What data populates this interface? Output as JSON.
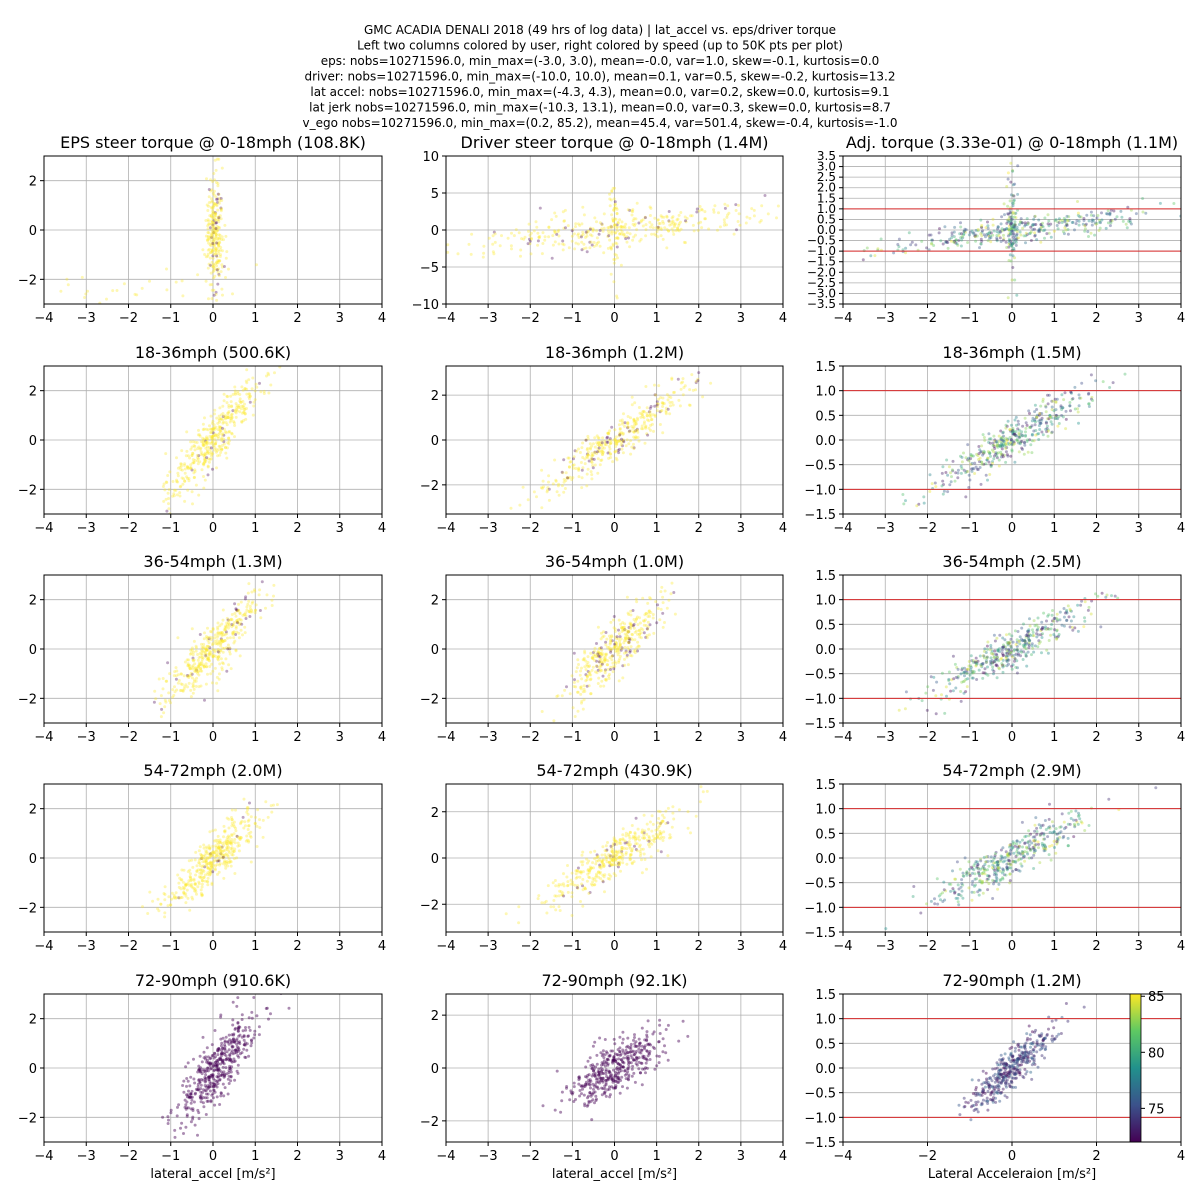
{
  "figure": {
    "suptitle_lines": [
      "GMC ACADIA DENALI 2018 (49 hrs of log data) | lat_accel vs. eps/driver torque",
      "Left two columns colored by user, right colored by speed (up to 50K pts per plot)",
      "eps: nobs=10271596.0, min_max=(-3.0, 3.0), mean=-0.0, var=1.0, skew=-0.1, kurtosis=0.0",
      "driver: nobs=10271596.0, min_max=(-10.0, 10.0), mean=0.1, var=0.5, skew=-0.2, kurtosis=13.2",
      "lat accel: nobs=10271596.0, min_max=(-4.3, 4.3), mean=0.0, var=0.2, skew=0.0, kurtosis=9.1",
      "lat jerk nobs=10271596.0, min_max=(-10.3, 13.1), mean=0.0, var=0.3, skew=0.0, kurtosis=8.7",
      "v_ego nobs=10271596.0, min_max=(0.2, 85.2), mean=45.4, var=501.4, skew=-0.4, kurtosis=-1.0"
    ],
    "colors": {
      "viridis": [
        "#440154",
        "#3b528b",
        "#21918c",
        "#5ec962",
        "#fde725"
      ],
      "yellow": "#fde725",
      "purple": "#440154",
      "refline": "#d62728",
      "grid": "#b0b0b0"
    },
    "colorbar": {
      "ticks": [
        75,
        80,
        85
      ],
      "range": [
        72,
        85.2
      ]
    }
  },
  "chart_data": [
    {
      "type": "scatter",
      "title": "EPS steer torque @ 0-18mph (108.8K)",
      "xlim": [
        -4,
        4
      ],
      "ylim": [
        -3,
        3
      ],
      "xticks": [
        -4,
        -3,
        -2,
        -1,
        0,
        1,
        2,
        3,
        4
      ],
      "yticks": [
        -2,
        0,
        2
      ],
      "xlabel": "",
      "grid": true,
      "color_mode": "user",
      "clusters": [
        {
          "cx": 0.05,
          "cy": 0,
          "sx": 0.1,
          "sy": 1.2,
          "slope": 0,
          "n": 260,
          "purple": 0.12
        },
        {
          "cx": -1.5,
          "cy": -2.3,
          "sx": 1.3,
          "sy": 0.4,
          "slope": 0.2,
          "n": 30,
          "purple": 0
        }
      ]
    },
    {
      "type": "scatter",
      "title": "Driver steer torque @ 0-18mph (1.4M)",
      "xlim": [
        -4,
        4
      ],
      "ylim": [
        -10,
        10
      ],
      "xticks": [
        -4,
        -3,
        -2,
        -1,
        0,
        1,
        2,
        3,
        4
      ],
      "yticks": [
        -10,
        -5,
        0,
        5,
        10
      ],
      "xlabel": "",
      "grid": true,
      "color_mode": "user",
      "clusters": [
        {
          "cx": 0,
          "cy": 0,
          "sx": 1.8,
          "sy": 1.2,
          "slope": 0.7,
          "n": 360,
          "purple": 0.1
        },
        {
          "cx": 0,
          "cy": 0,
          "sx": 0.07,
          "sy": 3.5,
          "slope": 0,
          "n": 60,
          "purple": 0.05
        }
      ]
    },
    {
      "type": "scatter",
      "title": "Adj. torque (3.33e-01) @ 0-18mph (1.1M)",
      "xlim": [
        -4,
        4
      ],
      "ylim": [
        -3.5,
        3.5
      ],
      "xticks": [
        -4,
        -3,
        -2,
        -1,
        0,
        1,
        2,
        3,
        4
      ],
      "yticks": [
        -3.5,
        -3,
        -2.5,
        -2,
        -1.5,
        -1,
        -0.5,
        0,
        0.5,
        1,
        1.5,
        2,
        2.5,
        3,
        3.5
      ],
      "xlabel": "",
      "grid": true,
      "color_mode": "speed",
      "reflines": [
        -1,
        1
      ],
      "clusters": [
        {
          "cx": 0.2,
          "cy": 0.05,
          "sx": 1.6,
          "sy": 0.3,
          "slope": 0.25,
          "n": 360,
          "purple": 0
        },
        {
          "cx": 0,
          "cy": 0,
          "sx": 0.08,
          "sy": 1.2,
          "slope": 0,
          "n": 100,
          "purple": 0
        }
      ]
    },
    {
      "type": "scatter",
      "title": "18-36mph (500.6K)",
      "xlim": [
        -4,
        4
      ],
      "ylim": [
        -3,
        3
      ],
      "xticks": [
        -4,
        -3,
        -2,
        -1,
        0,
        1,
        2,
        3,
        4
      ],
      "yticks": [
        -2,
        0,
        2
      ],
      "xlabel": "",
      "grid": true,
      "color_mode": "user",
      "clusters": [
        {
          "cx": 0,
          "cy": 0,
          "sx": 0.55,
          "sy": 0.55,
          "slope": 1.9,
          "n": 420,
          "purple": 0.04
        }
      ]
    },
    {
      "type": "scatter",
      "title": "18-36mph (1.2M)",
      "xlim": [
        -4,
        4
      ],
      "ylim": [
        -3.3,
        3.3
      ],
      "xticks": [
        -4,
        -3,
        -2,
        -1,
        0,
        1,
        2,
        3,
        4
      ],
      "yticks": [
        -2,
        0,
        2
      ],
      "xlabel": "",
      "grid": true,
      "color_mode": "user",
      "clusters": [
        {
          "cx": 0,
          "cy": 0,
          "sx": 1.0,
          "sy": 0.45,
          "slope": 1.3,
          "n": 400,
          "purple": 0.14
        }
      ]
    },
    {
      "type": "scatter",
      "title": "18-36mph (1.5M)",
      "xlim": [
        -4,
        4
      ],
      "ylim": [
        -1.5,
        1.5
      ],
      "xticks": [
        -4,
        -3,
        -2,
        -1,
        0,
        1,
        2,
        3,
        4
      ],
      "yticks": [
        -1.5,
        -1,
        -0.5,
        0,
        0.5,
        1,
        1.5
      ],
      "xlabel": "",
      "grid": true,
      "color_mode": "speed",
      "reflines": [
        -1,
        1
      ],
      "clusters": [
        {
          "cx": 0,
          "cy": 0,
          "sx": 0.9,
          "sy": 0.2,
          "slope": 0.5,
          "n": 420,
          "purple": 0
        }
      ]
    },
    {
      "type": "scatter",
      "title": "36-54mph (1.3M)",
      "xlim": [
        -4,
        4
      ],
      "ylim": [
        -3,
        3
      ],
      "xticks": [
        -4,
        -3,
        -2,
        -1,
        0,
        1,
        2,
        3,
        4
      ],
      "yticks": [
        -2,
        0,
        2
      ],
      "xlabel": "",
      "grid": true,
      "color_mode": "user",
      "clusters": [
        {
          "cx": 0,
          "cy": 0,
          "sx": 0.55,
          "sy": 0.55,
          "slope": 1.7,
          "n": 420,
          "purple": 0.08
        }
      ]
    },
    {
      "type": "scatter",
      "title": "36-54mph (1.0M)",
      "xlim": [
        -4,
        4
      ],
      "ylim": [
        -3,
        3
      ],
      "xticks": [
        -4,
        -3,
        -2,
        -1,
        0,
        1,
        2,
        3,
        4
      ],
      "yticks": [
        -2,
        0,
        2
      ],
      "xlabel": "",
      "grid": true,
      "color_mode": "user",
      "clusters": [
        {
          "cx": 0,
          "cy": 0,
          "sx": 0.55,
          "sy": 0.5,
          "slope": 1.5,
          "n": 400,
          "purple": 0.15
        }
      ]
    },
    {
      "type": "scatter",
      "title": "36-54mph (2.5M)",
      "xlim": [
        -4,
        4
      ],
      "ylim": [
        -1.5,
        1.5
      ],
      "xticks": [
        -4,
        -3,
        -2,
        -1,
        0,
        1,
        2,
        3,
        4
      ],
      "yticks": [
        -1.5,
        -1,
        -0.5,
        0,
        0.5,
        1,
        1.5
      ],
      "xlabel": "",
      "grid": true,
      "color_mode": "speed",
      "reflines": [
        -1,
        1
      ],
      "clusters": [
        {
          "cx": 0,
          "cy": 0,
          "sx": 0.9,
          "sy": 0.2,
          "slope": 0.45,
          "n": 420,
          "purple": 0
        }
      ]
    },
    {
      "type": "scatter",
      "title": "54-72mph (2.0M)",
      "xlim": [
        -4,
        4
      ],
      "ylim": [
        -3,
        3
      ],
      "xticks": [
        -4,
        -3,
        -2,
        -1,
        0,
        1,
        2,
        3,
        4
      ],
      "yticks": [
        -2,
        0,
        2
      ],
      "xlabel": "",
      "grid": true,
      "color_mode": "user",
      "clusters": [
        {
          "cx": 0,
          "cy": 0,
          "sx": 0.6,
          "sy": 0.5,
          "slope": 1.6,
          "n": 420,
          "purple": 0.03
        }
      ]
    },
    {
      "type": "scatter",
      "title": "54-72mph (430.9K)",
      "xlim": [
        -4,
        4
      ],
      "ylim": [
        -3.2,
        3.2
      ],
      "xticks": [
        -4,
        -3,
        -2,
        -1,
        0,
        1,
        2,
        3,
        4
      ],
      "yticks": [
        -2,
        0,
        2
      ],
      "xlabel": "",
      "grid": true,
      "color_mode": "user",
      "clusters": [
        {
          "cx": 0,
          "cy": 0,
          "sx": 0.75,
          "sy": 0.45,
          "slope": 1.1,
          "n": 400,
          "purple": 0.06
        }
      ]
    },
    {
      "type": "scatter",
      "title": "54-72mph (2.9M)",
      "xlim": [
        -4,
        4
      ],
      "ylim": [
        -1.5,
        1.5
      ],
      "xticks": [
        -4,
        -3,
        -2,
        -1,
        0,
        1,
        2,
        3,
        4
      ],
      "yticks": [
        -1.5,
        -1,
        -0.5,
        0,
        0.5,
        1,
        1.5
      ],
      "xlabel": "",
      "grid": true,
      "color_mode": "speed",
      "reflines": [
        -1,
        1
      ],
      "clusters": [
        {
          "cx": 0,
          "cy": 0,
          "sx": 0.9,
          "sy": 0.2,
          "slope": 0.45,
          "n": 420,
          "purple": 0
        }
      ]
    },
    {
      "type": "scatter",
      "title": "72-90mph (910.6K)",
      "xlim": [
        -4,
        4
      ],
      "ylim": [
        -3,
        3
      ],
      "xticks": [
        -4,
        -3,
        -2,
        -1,
        0,
        1,
        2,
        3,
        4
      ],
      "yticks": [
        -2,
        0,
        2
      ],
      "xlabel": "lateral_accel [m/s²]",
      "grid": true,
      "color_mode": "purple",
      "clusters": [
        {
          "cx": 0.1,
          "cy": 0,
          "sx": 0.45,
          "sy": 0.6,
          "slope": 2.0,
          "n": 440,
          "purple": 1
        }
      ]
    },
    {
      "type": "scatter",
      "title": "72-90mph (92.1K)",
      "xlim": [
        -4,
        4
      ],
      "ylim": [
        -2.8,
        2.8
      ],
      "xticks": [
        -4,
        -3,
        -2,
        -1,
        0,
        1,
        2,
        3,
        4
      ],
      "yticks": [
        -2,
        0,
        2
      ],
      "xlabel": "lateral_accel [m/s²]",
      "grid": true,
      "color_mode": "purple",
      "clusters": [
        {
          "cx": 0,
          "cy": 0,
          "sx": 0.55,
          "sy": 0.45,
          "slope": 0.9,
          "n": 420,
          "purple": 1
        }
      ]
    },
    {
      "type": "scatter",
      "title": "72-90mph (1.2M)",
      "xlim": [
        -4,
        4
      ],
      "ylim": [
        -1.5,
        1.5
      ],
      "xticks": [
        -4,
        -2,
        0,
        2,
        4
      ],
      "yticks": [
        -1.5,
        -1,
        -0.5,
        0,
        0.5,
        1,
        1.5
      ],
      "xlabel": "Lateral Acceleraion [m/s²]",
      "grid": true,
      "color_mode": "speed_dark",
      "reflines": [
        -1,
        1
      ],
      "clusters": [
        {
          "cx": 0,
          "cy": 0,
          "sx": 0.5,
          "sy": 0.2,
          "slope": 0.75,
          "n": 420,
          "purple": 0
        }
      ]
    }
  ]
}
